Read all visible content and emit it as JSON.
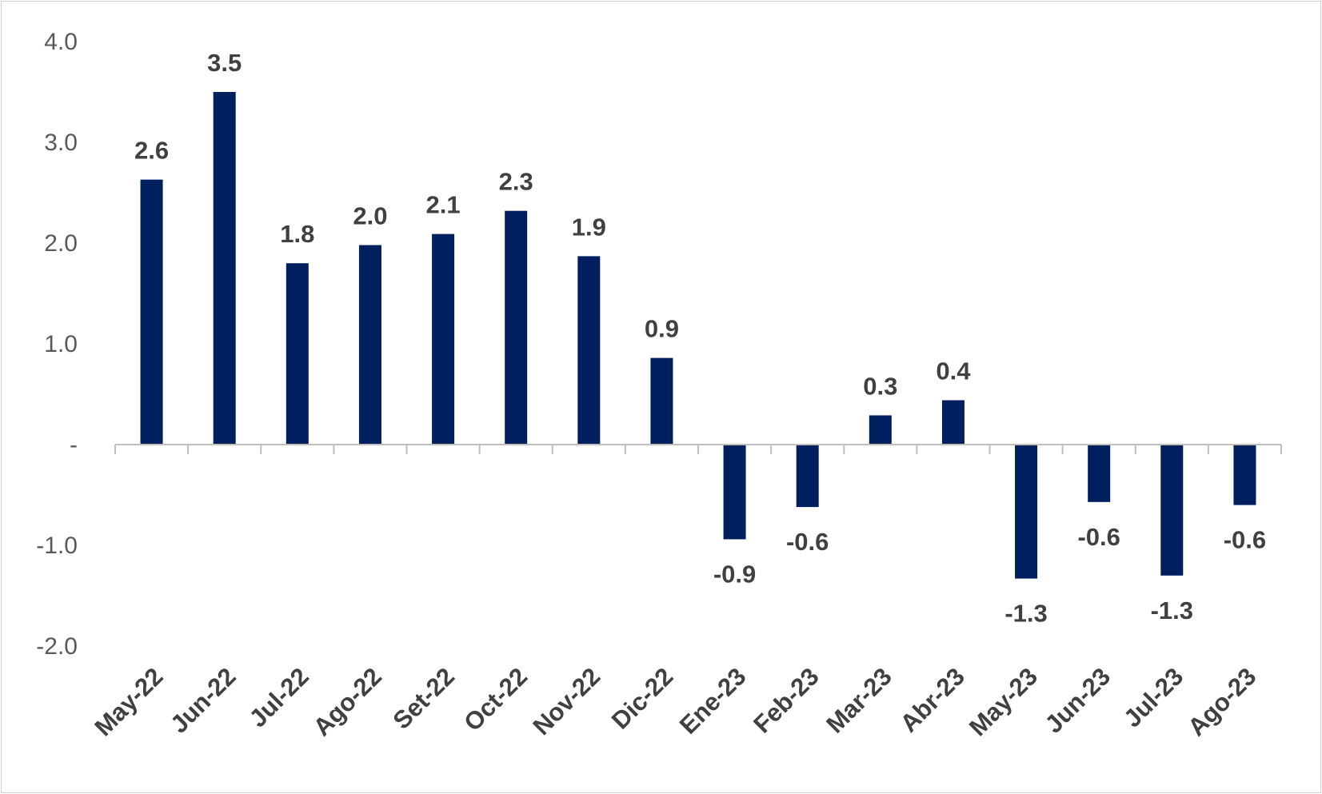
{
  "chart_data": {
    "type": "bar",
    "title": "",
    "xlabel": "",
    "ylabel": "",
    "categories": [
      "May-22",
      "Jun-22",
      "Jul-22",
      "Ago-22",
      "Set-22",
      "Oct-22",
      "Nov-22",
      "Dic-22",
      "Ene-23",
      "Feb-23",
      "Mar-23",
      "Abr-23",
      "May-23",
      "Jun-23",
      "Jul-23",
      "Ago-23"
    ],
    "values": [
      2.63,
      3.5,
      1.8,
      1.98,
      2.09,
      2.32,
      1.87,
      0.86,
      -0.94,
      -0.62,
      0.29,
      0.44,
      -1.33,
      -0.57,
      -1.3,
      -0.6
    ],
    "data_labels": [
      "2.6",
      "3.5",
      "1.8",
      "2.0",
      "2.1",
      "2.3",
      "1.9",
      "0.9",
      "-0.9",
      "-0.6",
      "0.3",
      "0.4",
      "-1.3",
      "-0.6",
      "-1.3",
      "-0.6"
    ],
    "ylim": [
      -2.0,
      4.0
    ],
    "yticks": [
      -2.0,
      -1.0,
      0,
      1.0,
      2.0,
      3.0,
      4.0
    ],
    "ytick_labels": [
      "-2.0",
      "-1.0",
      "-",
      "1.0",
      "2.0",
      "3.0",
      "4.0"
    ],
    "grid": false,
    "legend": "none",
    "bar_color": "#001f5f"
  }
}
